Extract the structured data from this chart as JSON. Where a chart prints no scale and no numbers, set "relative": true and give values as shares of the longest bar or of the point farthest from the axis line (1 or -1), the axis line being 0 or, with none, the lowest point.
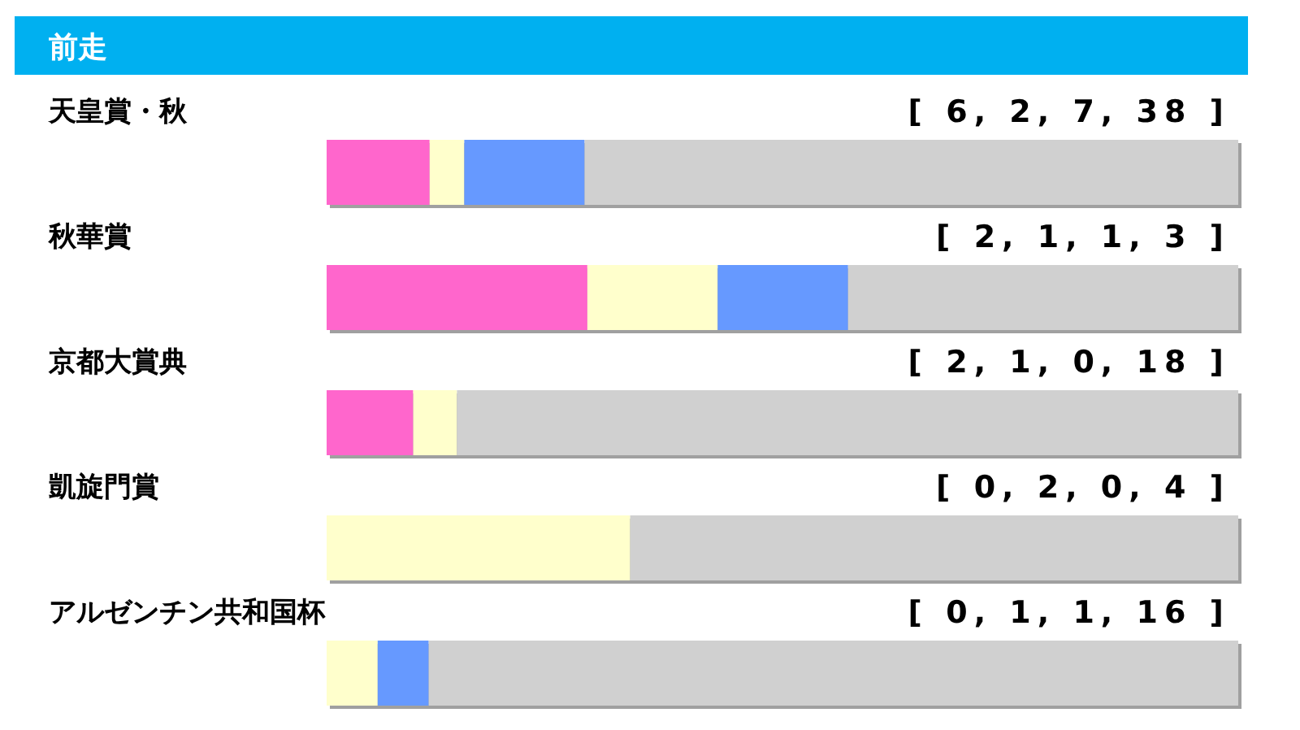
{
  "chart_data": {
    "type": "bar",
    "orientation": "horizontal",
    "stacked": true,
    "relative": true,
    "title": "前走",
    "categories": [
      "天皇賞・秋",
      "秋華賞",
      "京都大賞典",
      "凱旋門賞",
      "アルゼンチン共和国杯"
    ],
    "series": [
      {
        "color": "#ff66cc",
        "values": [
          0.113,
          0.286,
          0.095,
          0,
          0
        ]
      },
      {
        "color": "#ffffcc",
        "values": [
          0.038,
          0.143,
          0.048,
          0.333,
          0.056
        ]
      },
      {
        "color": "#6699ff",
        "values": [
          0.132,
          0.143,
          0,
          0,
          0.056
        ]
      },
      {
        "color": "#d0d0d0",
        "values": [
          0.717,
          0.428,
          0.857,
          0.667,
          0.888
        ]
      }
    ],
    "annotations": [
      "[ 6, 2, 7, 38 ]",
      "[ 2, 1, 1, 3 ]",
      "[ 2, 1, 0, 18 ]",
      "[ 0, 2, 0, 4 ]",
      "[ 0, 1, 1, 16 ]"
    ]
  }
}
